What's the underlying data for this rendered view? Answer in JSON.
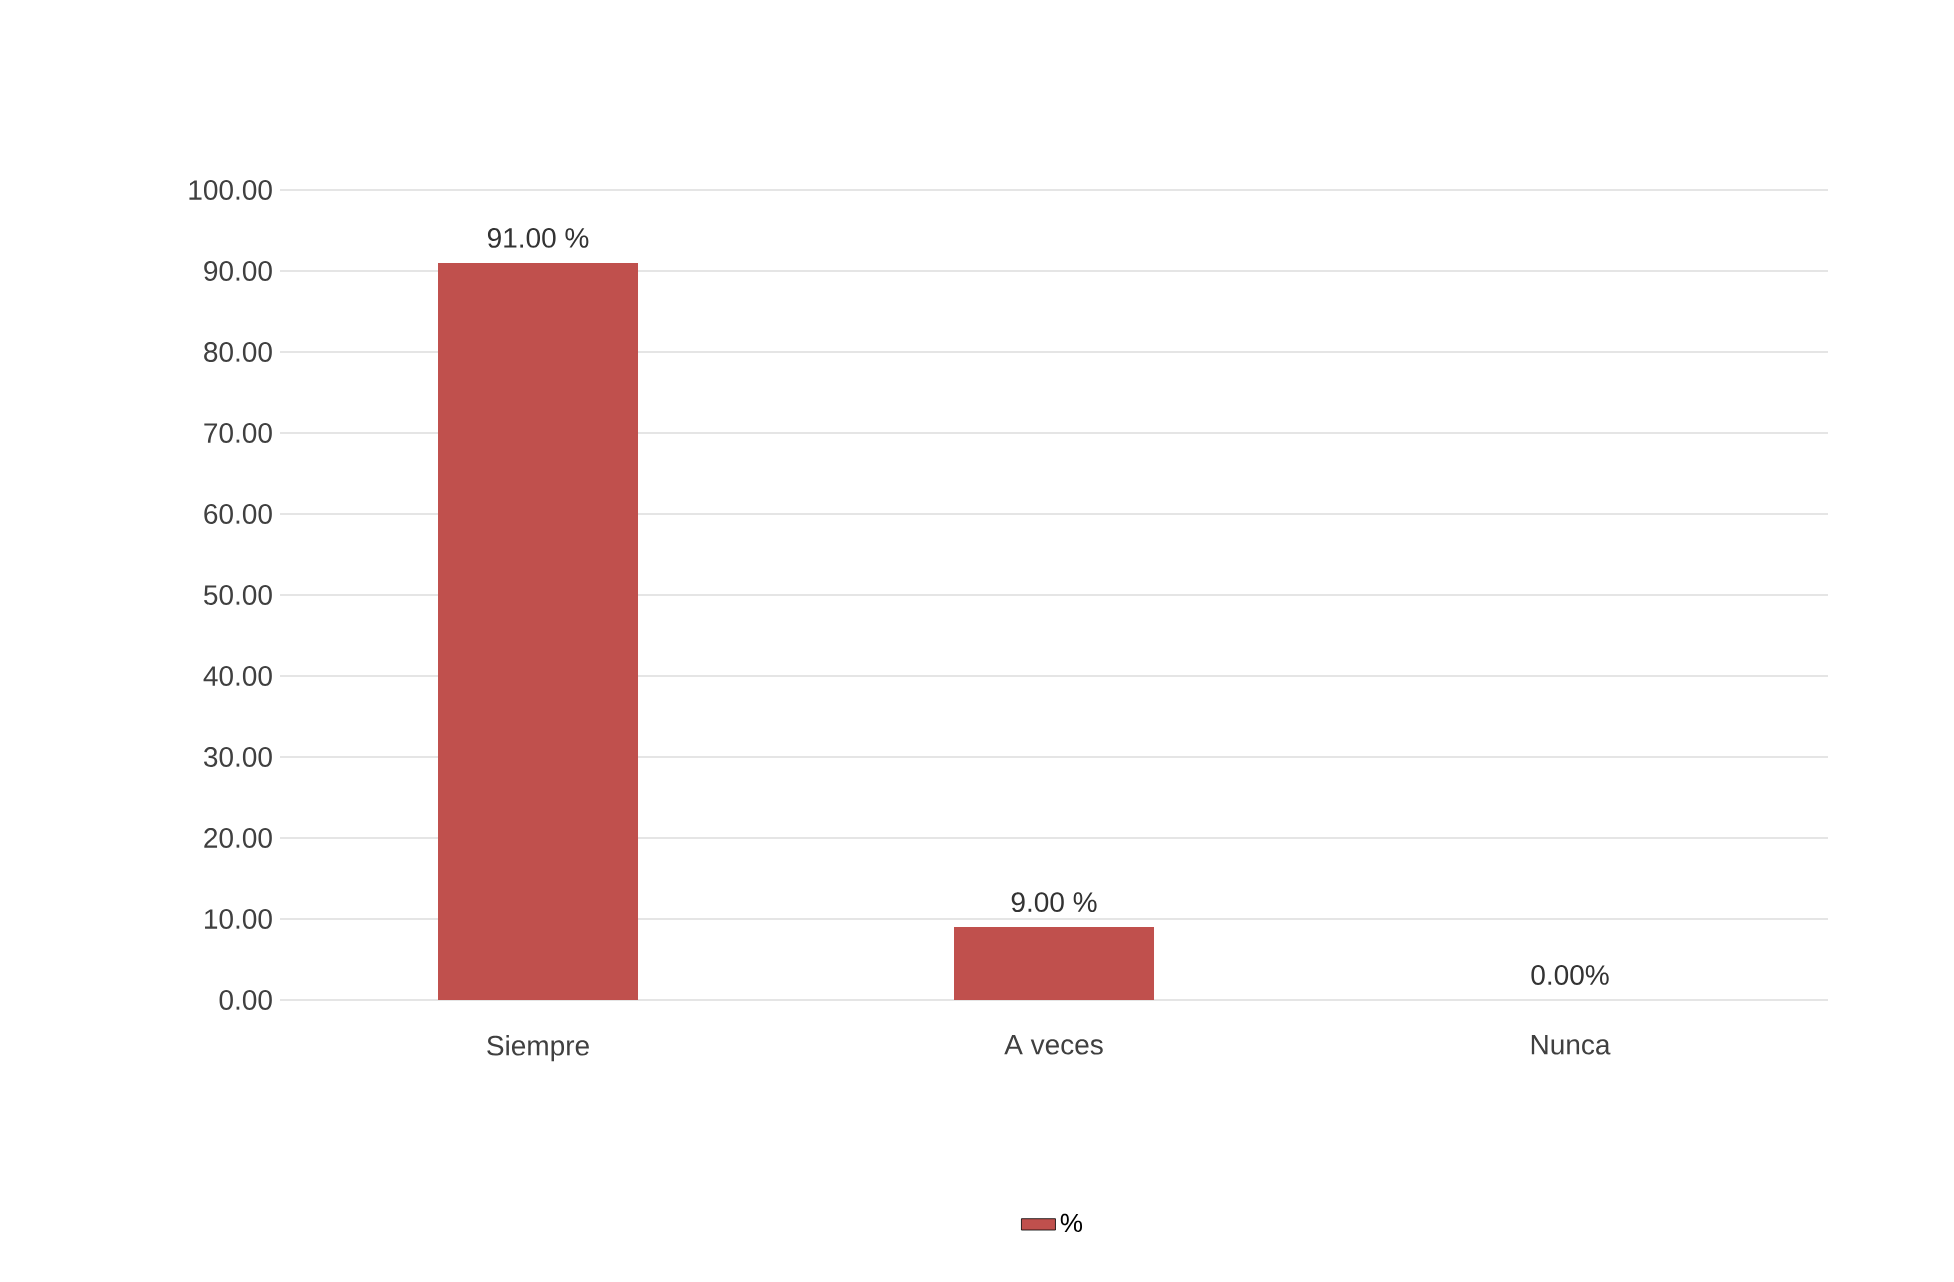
{
  "chart_data": {
    "type": "bar",
    "categories": [
      "Siempre",
      "A veces",
      "Nunca"
    ],
    "series": [
      {
        "name": "%",
        "color": "#c0504d",
        "values": [
          91,
          9,
          0
        ],
        "value_labels": [
          "91.00 %",
          "9.00  %",
          "0.00%"
        ]
      }
    ],
    "ylim": [
      0,
      100
    ],
    "yticks": [
      {
        "value": 0,
        "label": "0.00"
      },
      {
        "value": 10,
        "label": "10.00"
      },
      {
        "value": 20,
        "label": "20.00"
      },
      {
        "value": 30,
        "label": "30.00"
      },
      {
        "value": 40,
        "label": "40.00"
      },
      {
        "value": 50,
        "label": "50.00"
      },
      {
        "value": 60,
        "label": "60.00"
      },
      {
        "value": 70,
        "label": "70.00"
      },
      {
        "value": 80,
        "label": "80.00"
      },
      {
        "value": 90,
        "label": "90.00"
      },
      {
        "value": 100,
        "label": "100.00"
      }
    ],
    "grid": "y",
    "legend": "bottom"
  }
}
